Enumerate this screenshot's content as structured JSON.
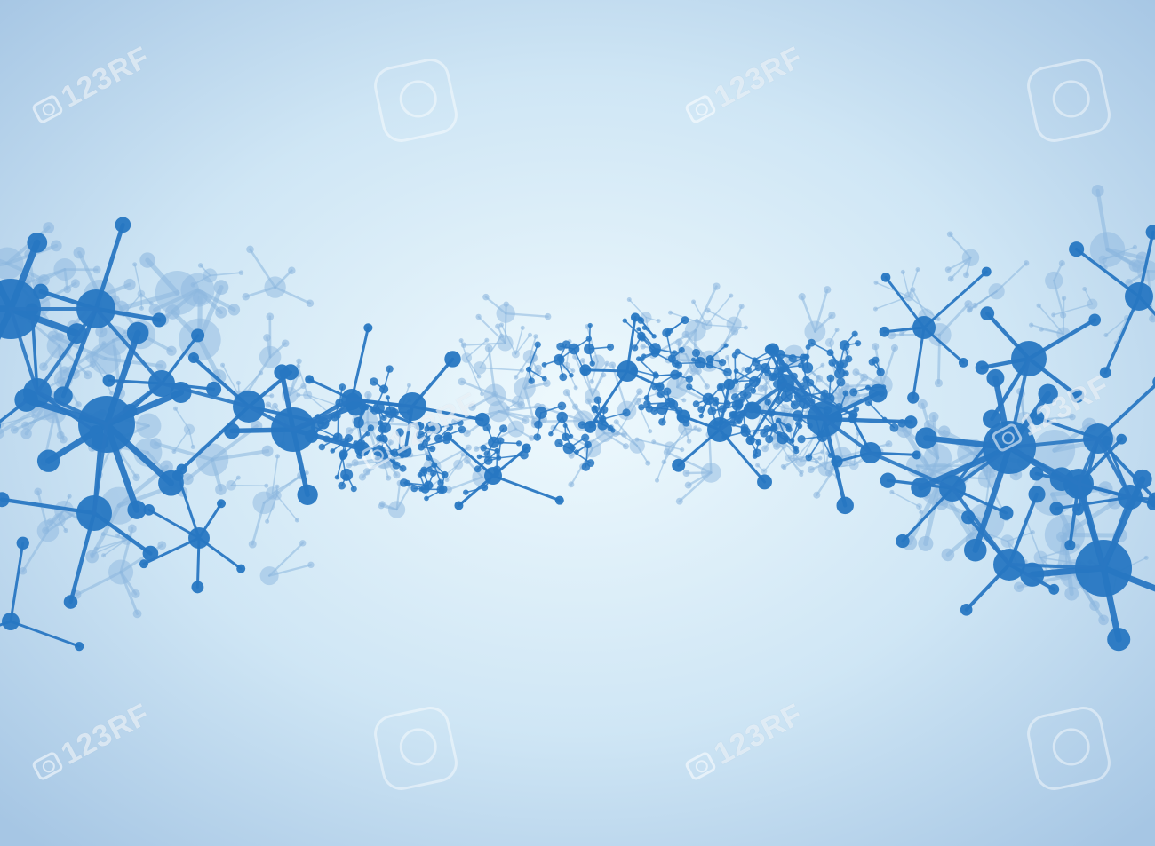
{
  "image": {
    "subject": "blue-molecule-network",
    "background": {
      "center": "#eaf6fc",
      "edge": "#a9c9e6"
    },
    "colors": {
      "atom": "#2777c2",
      "atom_light": "#8db8df",
      "bond": "#2a78c3"
    }
  },
  "watermark": {
    "text": "123RF",
    "icon": "camera-icon"
  }
}
